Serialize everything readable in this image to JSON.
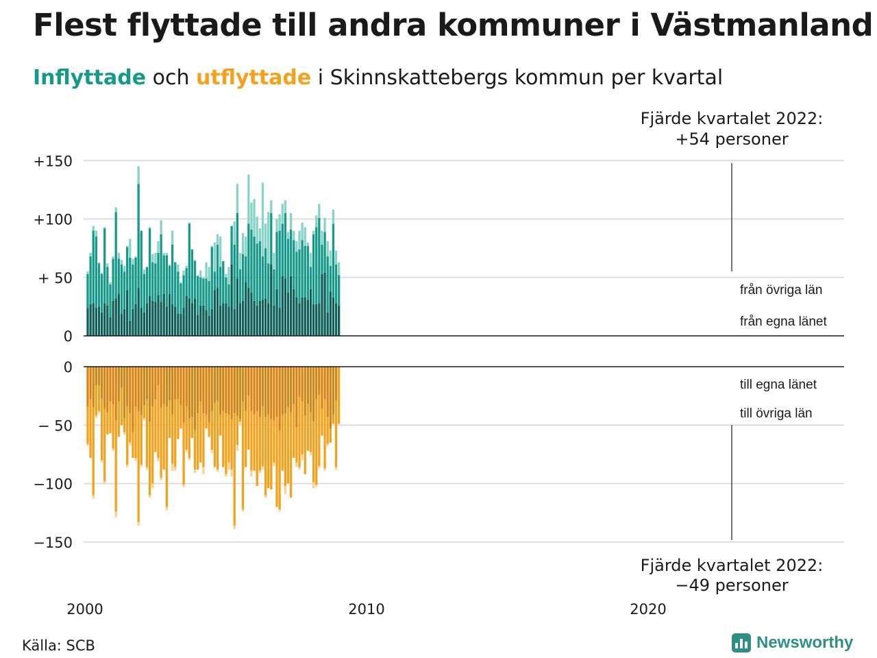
{
  "title": "Flest flyttade till andra kommuner i Västmanland",
  "subtitle": {
    "in_word": "Inflyttade",
    "and_word": " och ",
    "out_word": "utflyttade",
    "rest": " i Skinnskattebergs kommun per kvartal"
  },
  "annotation_top": {
    "line1": "Fjärde kvartalet 2022:",
    "line2": "+54 personer"
  },
  "annotation_bottom": {
    "line1": "Fjärde kvartalet 2022:",
    "line2": "−49 personer"
  },
  "source": "Källa: SCB",
  "logo_text": "Newsworthy",
  "colors": {
    "in_own": "#0f5e57",
    "in_other": "#17998a",
    "in_other_top": "#87d3c8",
    "out_own": "#d98310",
    "out_other": "#f5a11c",
    "out_other_top": "#fad192",
    "text": "#1a1a1a",
    "grid": "#dddddd"
  },
  "chart_data": {
    "type": "bar",
    "title": "Inflyttade och utflyttade i Skinnskattebergs kommun per kvartal",
    "x_start": "2000 Q1",
    "x_end": "2022 Q4",
    "x_ticks": [
      "2000",
      "2010",
      "2020"
    ],
    "top_y_ticks": [
      "+150",
      "+100",
      "+ 50",
      "0"
    ],
    "top_ylim": [
      0,
      150
    ],
    "bottom_y_ticks": [
      "0",
      "− 50",
      "−100",
      "−150"
    ],
    "bottom_ylim": [
      -150,
      0
    ],
    "legend_in": [
      "från övriga län",
      "från egna länet"
    ],
    "legend_out": [
      "till egna länet",
      "till övriga län"
    ],
    "series_in": [
      {
        "name": "från egna länet",
        "values": [
          24,
          27,
          28,
          24,
          25,
          20,
          28,
          26,
          16,
          30,
          32,
          36,
          19,
          23,
          36,
          13,
          23,
          27,
          40,
          24,
          20,
          28,
          34,
          30,
          34,
          25,
          36,
          25,
          26,
          19,
          19,
          23,
          34,
          32,
          28,
          32,
          37,
          18,
          26,
          26,
          22,
          17,
          23,
          39,
          41,
          26,
          28,
          28,
          25,
          61,
          23,
          49,
          28,
          30,
          46,
          40,
          37,
          30,
          26,
          30,
          31,
          32,
          28,
          61,
          26,
          40,
          24,
          52,
          49,
          47,
          28,
          50,
          52,
          30,
          34,
          33,
          31,
          40,
          41,
          40,
          27,
          30,
          54,
          55,
          20,
          38,
          34,
          28,
          26
        ],
        "label_source": "estimated"
      },
      {
        "name": "från övriga län",
        "values": [
          53,
          69,
          90,
          86,
          64,
          53,
          92,
          59,
          45,
          67,
          107,
          67,
          62,
          56,
          66,
          67,
          58,
          67,
          130,
          89,
          53,
          60,
          89,
          63,
          92,
          71,
          96,
          78,
          100,
          80,
          72,
          72,
          45,
          41,
          62,
          99,
          66,
          50,
          56,
          51,
          50,
          73,
          50,
          43,
          84,
          97,
          77,
          73,
          63,
          85,
          101,
          62,
          95,
          86,
          81,
          77,
          92,
          71,
          60,
          84,
          70,
          75,
          85,
          49,
          60,
          84,
          65,
          47,
          90,
          67,
          60,
          76,
          88,
          97,
          70,
          84,
          90,
          53,
          59,
          84,
          52,
          62,
          65,
          49,
          35,
          60,
          75,
          58,
          56,
          64,
          54
        ],
        "label_source": "estimated"
      }
    ],
    "series_in_totals": [
      56,
      71,
      94,
      90,
      75,
      54,
      93,
      60,
      46,
      68,
      110,
      72,
      64,
      59,
      117,
      83,
      61,
      73,
      145,
      89,
      53,
      60,
      93,
      77,
      90,
      99,
      99,
      110,
      81,
      74,
      52,
      49,
      53,
      69,
      65,
      50,
      52,
      54,
      106,
      50,
      68,
      57,
      86,
      51,
      63,
      85,
      102,
      71,
      75,
      73,
      85,
      109,
      80,
      122,
      111,
      115,
      84,
      104,
      118,
      91,
      117,
      105,
      108,
      131,
      84,
      76,
      149,
      100,
      92,
      112,
      122,
      106,
      106,
      107,
      99,
      79,
      73,
      93,
      88,
      90,
      77,
      105,
      63,
      64,
      86,
      116,
      95,
      78,
      73,
      100,
      54
    ]
  },
  "chart_values": {
    "in_own": [
      24,
      27,
      28,
      24,
      25,
      20,
      28,
      26,
      16,
      30,
      32,
      36,
      19,
      23,
      39,
      13,
      23,
      27,
      41,
      24,
      20,
      28,
      34,
      30,
      29,
      35,
      29,
      36,
      25,
      36,
      27,
      25,
      19,
      19,
      24,
      34,
      32,
      28,
      32,
      18,
      26,
      26,
      22,
      17,
      23,
      39,
      41,
      26,
      28,
      28,
      25,
      61,
      23,
      49,
      28,
      30,
      46,
      41,
      37,
      30,
      26,
      30,
      31,
      32,
      28,
      61,
      26,
      40,
      24,
      51,
      49,
      37,
      51,
      40,
      33,
      28,
      33,
      33,
      31,
      40,
      27,
      27,
      28,
      53,
      54,
      20,
      38,
      33,
      28,
      26
    ],
    "in_other": [
      29,
      41,
      62,
      61,
      37,
      33,
      64,
      33,
      28,
      36,
      74,
      30,
      42,
      32,
      37,
      54,
      38,
      40,
      89,
      66,
      33,
      31,
      58,
      33,
      33,
      36,
      58,
      33,
      44,
      24,
      51,
      38,
      36,
      26,
      28,
      24,
      64,
      46,
      32,
      33,
      24,
      23,
      27,
      30,
      53,
      16,
      37,
      33,
      36,
      22,
      19,
      33,
      55,
      56,
      29,
      40,
      22,
      55,
      54,
      55,
      53,
      51,
      37,
      43,
      34,
      44,
      31,
      49,
      66,
      45,
      56,
      46,
      40,
      42,
      39,
      46,
      49,
      44,
      46,
      19,
      60,
      66,
      73,
      25,
      35,
      48,
      22,
      63,
      33,
      26,
      27,
      31,
      28
    ],
    "in_top": [
      2,
      3,
      4,
      5,
      1,
      1,
      1,
      3,
      2,
      2,
      4,
      5,
      4,
      5,
      1,
      16,
      5,
      1,
      15,
      0,
      4,
      0,
      1,
      7,
      9,
      10,
      12,
      2,
      2,
      1,
      12,
      0,
      6,
      1,
      4,
      2,
      1,
      0,
      1,
      1,
      6,
      1,
      14,
      12,
      1,
      25,
      9,
      26,
      0,
      3,
      15,
      0,
      20,
      25,
      14,
      18,
      17,
      42,
      23,
      32,
      23,
      11,
      63,
      21,
      44,
      11,
      14,
      11,
      14,
      17,
      11,
      6,
      14,
      8,
      9,
      16,
      15,
      16,
      3,
      12,
      3,
      10,
      12,
      12,
      12,
      13,
      13,
      12,
      12,
      11,
      12,
      14,
      12,
      0
    ],
    "out_own": [
      34,
      28,
      35,
      16,
      16,
      27,
      36,
      39,
      30,
      32,
      46,
      30,
      18,
      44,
      34,
      40,
      56,
      34,
      38,
      41,
      33,
      28,
      47,
      34,
      28,
      16,
      35,
      32,
      34,
      29,
      41,
      28,
      28,
      33,
      48,
      34,
      44,
      43,
      54,
      40,
      30,
      40,
      41,
      48,
      38,
      31,
      29,
      41,
      38,
      40,
      41,
      45,
      40,
      42,
      45,
      30,
      38,
      25,
      38,
      41,
      38,
      43,
      34,
      43,
      41,
      45,
      46,
      43,
      55,
      41,
      40,
      35,
      39,
      32,
      52,
      26,
      30,
      42,
      32,
      39,
      47,
      28,
      24,
      36,
      28,
      43,
      53,
      41,
      29
    ],
    "out_total": [
      66,
      78,
      110,
      42,
      38,
      80,
      98,
      58,
      57,
      70,
      124,
      60,
      50,
      56,
      84,
      65,
      78,
      78,
      133,
      84,
      44,
      86,
      110,
      100,
      73,
      78,
      95,
      88,
      120,
      61,
      83,
      86,
      62,
      53,
      101,
      71,
      78,
      61,
      88,
      88,
      82,
      86,
      53,
      60,
      71,
      86,
      88,
      59,
      86,
      92,
      82,
      88,
      136,
      67,
      47,
      122,
      86,
      71,
      89,
      89,
      102,
      89,
      85,
      110,
      104,
      105,
      82,
      120,
      122,
      89,
      102,
      100,
      112,
      78,
      82,
      86,
      75,
      92,
      72,
      73,
      99,
      101,
      85,
      59,
      87,
      66,
      65,
      49,
      86,
      49
    ],
    "out_top": [
      2,
      0,
      3,
      2,
      2,
      2,
      2,
      0,
      0,
      2,
      5,
      0,
      0,
      2,
      2,
      2,
      0,
      3,
      3,
      2,
      2,
      2,
      2,
      4,
      0,
      3,
      2,
      0,
      3,
      0,
      6,
      3,
      0,
      0,
      2,
      2,
      2,
      0,
      3,
      0,
      0,
      6,
      0,
      0,
      3,
      0,
      2,
      0,
      0,
      2,
      6,
      6,
      3,
      5,
      3,
      2,
      0,
      0,
      5,
      0,
      0,
      2,
      3,
      2,
      0,
      0,
      3,
      0,
      2,
      0,
      7,
      0,
      0,
      0,
      4,
      2,
      5,
      0,
      0,
      3,
      5,
      2,
      2,
      0,
      2,
      2,
      0,
      0,
      2,
      0
    ]
  }
}
